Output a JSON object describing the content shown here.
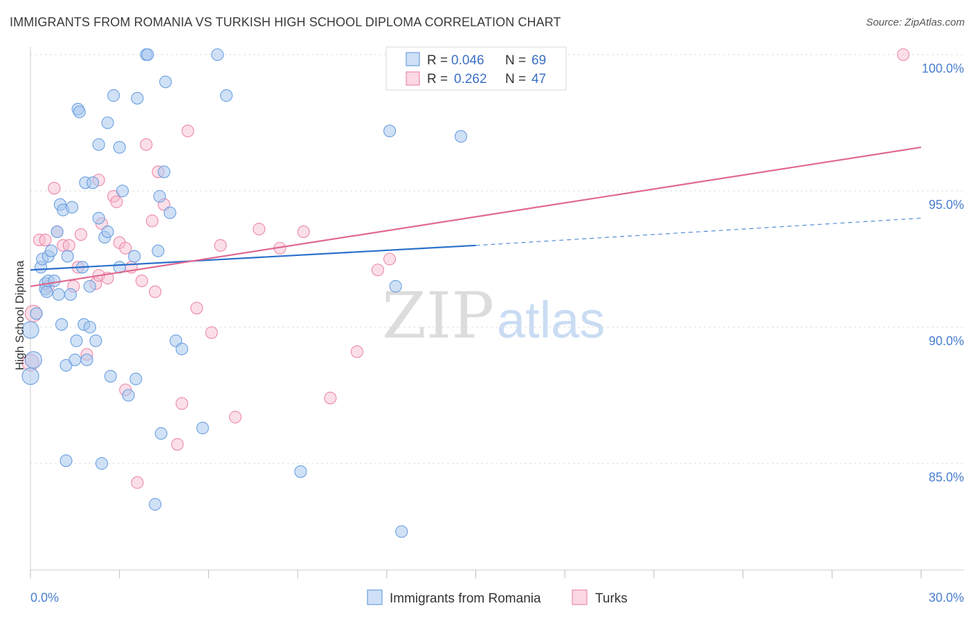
{
  "title": "IMMIGRANTS FROM ROMANIA VS TURKISH HIGH SCHOOL DIPLOMA CORRELATION CHART",
  "source": "Source: ZipAtlas.com",
  "watermark": {
    "zip": "ZIP",
    "atlas": "atlas"
  },
  "legend": {
    "r_label": "R =",
    "n_label": "N =",
    "rows": [
      {
        "r": "0.046",
        "n": "69",
        "color": "#aac8ef"
      },
      {
        "r": "0.262",
        "n": "47",
        "color": "#f7b9cc"
      }
    ]
  },
  "bottom_legend": [
    {
      "label": "Immigrants from Romania",
      "color": "#aac8ef"
    },
    {
      "label": "Turks",
      "color": "#f7b9cc"
    }
  ],
  "chart_data": {
    "type": "scatter",
    "title": "IMMIGRANTS FROM ROMANIA VS TURKISH HIGH SCHOOL DIPLOMA CORRELATION CHART",
    "xlabel": "",
    "ylabel": "High School Diploma",
    "xlim": [
      0,
      30
    ],
    "ylim": [
      80.5,
      100.5
    ],
    "x_tick_labels": [
      "0.0%",
      "30.0%"
    ],
    "y_ticks": [
      85,
      90,
      95,
      100
    ],
    "y_tick_labels": [
      "85.0%",
      "90.0%",
      "95.0%",
      "100.0%"
    ],
    "grid": true,
    "colors": {
      "blue": "#6a9fe0",
      "pink": "#ec88a8",
      "blue_line": "#2a6fcb",
      "pink_line": "#e0688f"
    },
    "series": [
      {
        "name": "Immigrants from Romania",
        "trend": {
          "x": [
            0,
            15
          ],
          "y": [
            92.1,
            93.0
          ],
          "dashed_to": [
            30,
            94.0
          ]
        },
        "points": [
          [
            0.0,
            89.9
          ],
          [
            0.0,
            88.2
          ],
          [
            0.1,
            88.8
          ],
          [
            0.2,
            90.5
          ],
          [
            0.35,
            92.2
          ],
          [
            0.4,
            92.5
          ],
          [
            0.5,
            91.6
          ],
          [
            0.5,
            91.4
          ],
          [
            0.55,
            91.3
          ],
          [
            0.6,
            92.6
          ],
          [
            0.6,
            91.7
          ],
          [
            0.7,
            92.8
          ],
          [
            0.8,
            91.7
          ],
          [
            0.9,
            93.5
          ],
          [
            0.95,
            91.2
          ],
          [
            1.0,
            94.5
          ],
          [
            1.05,
            90.1
          ],
          [
            1.1,
            94.3
          ],
          [
            1.2,
            88.6
          ],
          [
            1.2,
            85.1
          ],
          [
            1.25,
            92.6
          ],
          [
            1.35,
            91.2
          ],
          [
            1.4,
            94.4
          ],
          [
            1.5,
            88.8
          ],
          [
            1.55,
            89.5
          ],
          [
            1.6,
            98.0
          ],
          [
            1.65,
            97.9
          ],
          [
            1.75,
            92.2
          ],
          [
            1.8,
            90.1
          ],
          [
            1.85,
            95.3
          ],
          [
            1.9,
            88.8
          ],
          [
            2.0,
            90.0
          ],
          [
            2.0,
            91.5
          ],
          [
            2.1,
            95.3
          ],
          [
            2.2,
            89.5
          ],
          [
            2.3,
            96.7
          ],
          [
            2.3,
            94.0
          ],
          [
            2.4,
            85.0
          ],
          [
            2.5,
            93.3
          ],
          [
            2.6,
            93.5
          ],
          [
            2.6,
            97.5
          ],
          [
            2.7,
            88.2
          ],
          [
            2.8,
            98.5
          ],
          [
            3.0,
            96.6
          ],
          [
            3.0,
            92.2
          ],
          [
            3.1,
            95.0
          ],
          [
            3.3,
            87.5
          ],
          [
            3.5,
            92.6
          ],
          [
            3.55,
            88.1
          ],
          [
            3.6,
            98.4
          ],
          [
            3.9,
            100.0
          ],
          [
            3.95,
            100.0
          ],
          [
            4.2,
            83.5
          ],
          [
            4.3,
            92.8
          ],
          [
            4.35,
            94.8
          ],
          [
            4.4,
            86.1
          ],
          [
            4.5,
            95.7
          ],
          [
            4.55,
            99.0
          ],
          [
            4.7,
            94.2
          ],
          [
            4.9,
            89.5
          ],
          [
            5.1,
            89.2
          ],
          [
            5.8,
            86.3
          ],
          [
            6.3,
            100.0
          ],
          [
            6.6,
            98.5
          ],
          [
            9.1,
            84.7
          ],
          [
            12.1,
            97.2
          ],
          [
            12.3,
            91.5
          ],
          [
            12.5,
            82.5
          ],
          [
            14.5,
            97.0
          ]
        ]
      },
      {
        "name": "Turks",
        "trend": {
          "x": [
            0,
            30
          ],
          "y": [
            91.5,
            96.6
          ]
        },
        "points": [
          [
            0.0,
            88.7
          ],
          [
            0.1,
            90.5
          ],
          [
            0.3,
            93.2
          ],
          [
            0.5,
            93.2
          ],
          [
            0.6,
            91.5
          ],
          [
            0.8,
            95.1
          ],
          [
            0.9,
            93.5
          ],
          [
            1.1,
            93.0
          ],
          [
            1.3,
            93.0
          ],
          [
            1.45,
            91.5
          ],
          [
            1.6,
            92.2
          ],
          [
            1.7,
            93.4
          ],
          [
            1.9,
            89.0
          ],
          [
            2.2,
            91.6
          ],
          [
            2.3,
            95.4
          ],
          [
            2.3,
            91.9
          ],
          [
            2.4,
            93.8
          ],
          [
            2.6,
            91.8
          ],
          [
            2.8,
            94.8
          ],
          [
            2.9,
            94.6
          ],
          [
            3.0,
            93.1
          ],
          [
            3.2,
            87.7
          ],
          [
            3.2,
            92.9
          ],
          [
            3.4,
            92.2
          ],
          [
            3.6,
            84.3
          ],
          [
            3.75,
            91.7
          ],
          [
            3.9,
            96.7
          ],
          [
            4.1,
            93.9
          ],
          [
            4.2,
            91.3
          ],
          [
            4.3,
            95.7
          ],
          [
            4.5,
            94.5
          ],
          [
            4.95,
            85.7
          ],
          [
            5.1,
            87.2
          ],
          [
            5.3,
            97.2
          ],
          [
            5.6,
            90.7
          ],
          [
            6.1,
            89.8
          ],
          [
            6.4,
            93.0
          ],
          [
            6.9,
            86.7
          ],
          [
            7.7,
            93.6
          ],
          [
            8.4,
            92.9
          ],
          [
            9.2,
            93.5
          ],
          [
            10.1,
            87.4
          ],
          [
            11.0,
            89.1
          ],
          [
            11.7,
            92.1
          ],
          [
            12.1,
            92.5
          ],
          [
            12.2,
            100.0
          ],
          [
            29.4,
            100.0
          ]
        ]
      }
    ]
  }
}
